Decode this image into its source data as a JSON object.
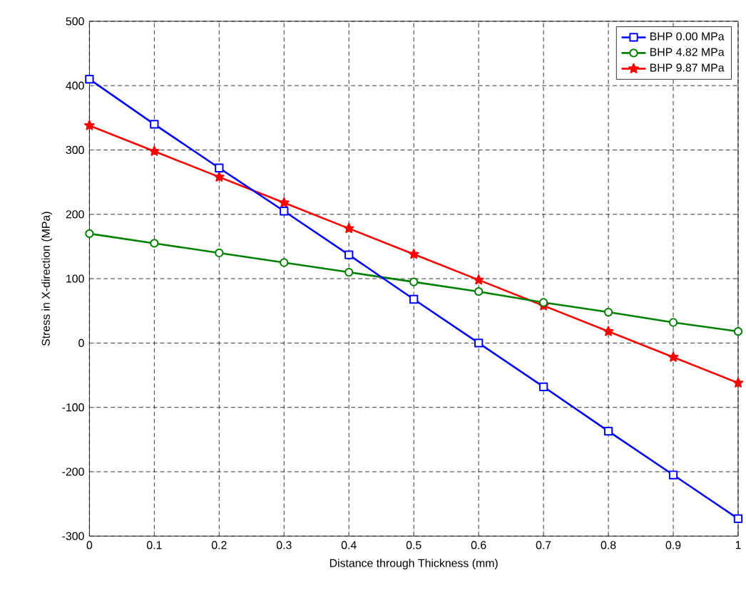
{
  "chart_data": {
    "type": "line",
    "xlabel": "Distance through Thickness (mm)",
    "ylabel": "Stress in X-direction (MPa)",
    "x": [
      0,
      0.1,
      0.2,
      0.3,
      0.4,
      0.5,
      0.6,
      0.7,
      0.8,
      0.9,
      1
    ],
    "series": [
      {
        "name": "BHP 0.00 MPa",
        "color": "#0000ff",
        "marker": "square",
        "values": [
          410,
          340,
          272,
          205,
          137,
          68,
          0,
          -68,
          -137,
          -205,
          -273
        ]
      },
      {
        "name": "BHP 4.82 MPa",
        "color": "#008000",
        "marker": "circle",
        "values": [
          170,
          155,
          140,
          125,
          110,
          95,
          80,
          63,
          48,
          32,
          18
        ]
      },
      {
        "name": "BHP 9.87 MPa",
        "color": "#ff0000",
        "marker": "star",
        "values": [
          338,
          298,
          258,
          218,
          178,
          138,
          98,
          58,
          18,
          -22,
          -62
        ]
      }
    ],
    "xlim": [
      0,
      1
    ],
    "ylim": [
      -300,
      500
    ],
    "xticks": [
      0,
      0.1,
      0.2,
      0.3,
      0.4,
      0.5,
      0.6,
      0.7,
      0.8,
      0.9,
      1
    ],
    "yticks": [
      -300,
      -200,
      -100,
      0,
      100,
      200,
      300,
      400,
      500
    ],
    "grid": true,
    "legend": "top right",
    "line_style": "solid"
  }
}
